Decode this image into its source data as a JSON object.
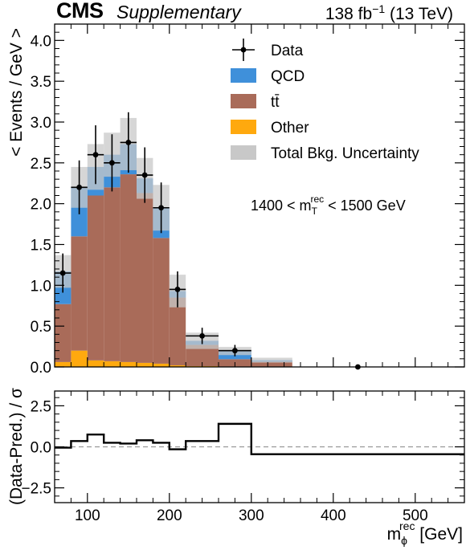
{
  "header": {
    "experiment": "CMS",
    "tag": "Supplementary",
    "lumi_prefix": "138 fb",
    "lumi_sup": "−1",
    "lumi_suffix": " (13 TeV)"
  },
  "colors": {
    "qcd": "#3f90da",
    "ttbar": "#a96b59",
    "other": "#ffa90e",
    "uncertainty": "#c8c8c8",
    "data": "#000000",
    "ratio_line": "#000000"
  },
  "chart_data": [
    {
      "type": "stacked-histogram",
      "ylabel": "< Events / GeV >",
      "ylim": [
        0,
        4.2
      ],
      "yticks": [
        "0.0",
        "0.5",
        "1.0",
        "1.5",
        "2.0",
        "2.5",
        "3.0",
        "3.5",
        "4.0"
      ],
      "xlim": [
        60,
        560
      ],
      "annotation": {
        "prefix": "1400 < m",
        "sub": "T",
        "sup": "rec",
        "suffix": " < 1500 GeV"
      },
      "legend": [
        {
          "label": "Data",
          "kind": "marker"
        },
        {
          "label": "QCD",
          "kind": "box",
          "color": "#3f90da"
        },
        {
          "label": "tt̄",
          "kind": "box",
          "color": "#a96b59"
        },
        {
          "label": "Other",
          "kind": "box",
          "color": "#ffa90e"
        },
        {
          "label": "Total Bkg. Uncertainty",
          "kind": "box",
          "color": "#c8c8c8"
        }
      ],
      "bin_edges": [
        60,
        80,
        100,
        120,
        140,
        160,
        180,
        200,
        220,
        260,
        300,
        350,
        400,
        450,
        500,
        560
      ],
      "series": [
        {
          "name": "Other",
          "values": [
            0.06,
            0.2,
            0.08,
            0.07,
            0.06,
            0.05,
            0.04,
            0.02,
            0.01,
            0.005,
            0.003,
            0,
            0,
            0,
            0
          ]
        },
        {
          "name": "tt̄",
          "values": [
            0.71,
            1.4,
            2.02,
            2.13,
            2.3,
            2.08,
            1.54,
            0.83,
            0.26,
            0.09,
            0.06,
            0,
            0,
            0,
            0
          ]
        },
        {
          "name": "QCD",
          "values": [
            0.4,
            0.6,
            0.35,
            0.4,
            0.37,
            0.18,
            0.37,
            0.08,
            0.05,
            0.1,
            0.02,
            0,
            0,
            0,
            0
          ]
        }
      ],
      "uncertainty": [
        0.2,
        0.25,
        0.28,
        0.27,
        0.32,
        0.25,
        0.28,
        0.2,
        0.1,
        0.05,
        0.03,
        0,
        0,
        0,
        0
      ],
      "data": {
        "x": [
          70,
          90,
          110,
          130,
          150,
          170,
          190,
          210,
          240,
          280,
          430
        ],
        "y": [
          1.15,
          2.2,
          2.6,
          2.5,
          2.75,
          2.35,
          1.95,
          0.95,
          0.38,
          0.2,
          0.0
        ],
        "yerr": [
          0.24,
          0.33,
          0.36,
          0.35,
          0.37,
          0.34,
          0.31,
          0.22,
          0.1,
          0.07,
          0.004
        ],
        "xerr": [
          10,
          10,
          10,
          10,
          10,
          10,
          10,
          10,
          20,
          20,
          0
        ]
      }
    },
    {
      "type": "step",
      "ylabel": "(Data-Pred.) / σ",
      "xlabel_base": "m",
      "xlabel_sub": "ϕ",
      "xlabel_sup": "rec",
      "xlabel_unit": " [GeV]",
      "xlim": [
        60,
        560
      ],
      "ylim": [
        -3.4,
        3.4
      ],
      "xticks": [
        "100",
        "200",
        "300",
        "400",
        "500"
      ],
      "yticks": [
        "−2.5",
        "0.0",
        "2.5"
      ],
      "bin_edges": [
        60,
        80,
        100,
        120,
        140,
        160,
        180,
        200,
        220,
        260,
        300,
        560
      ],
      "values": [
        -0.05,
        0.35,
        0.75,
        0.25,
        0.2,
        0.4,
        0.25,
        -0.15,
        0.35,
        1.4,
        -0.45
      ],
      "reference_line": 0
    }
  ]
}
